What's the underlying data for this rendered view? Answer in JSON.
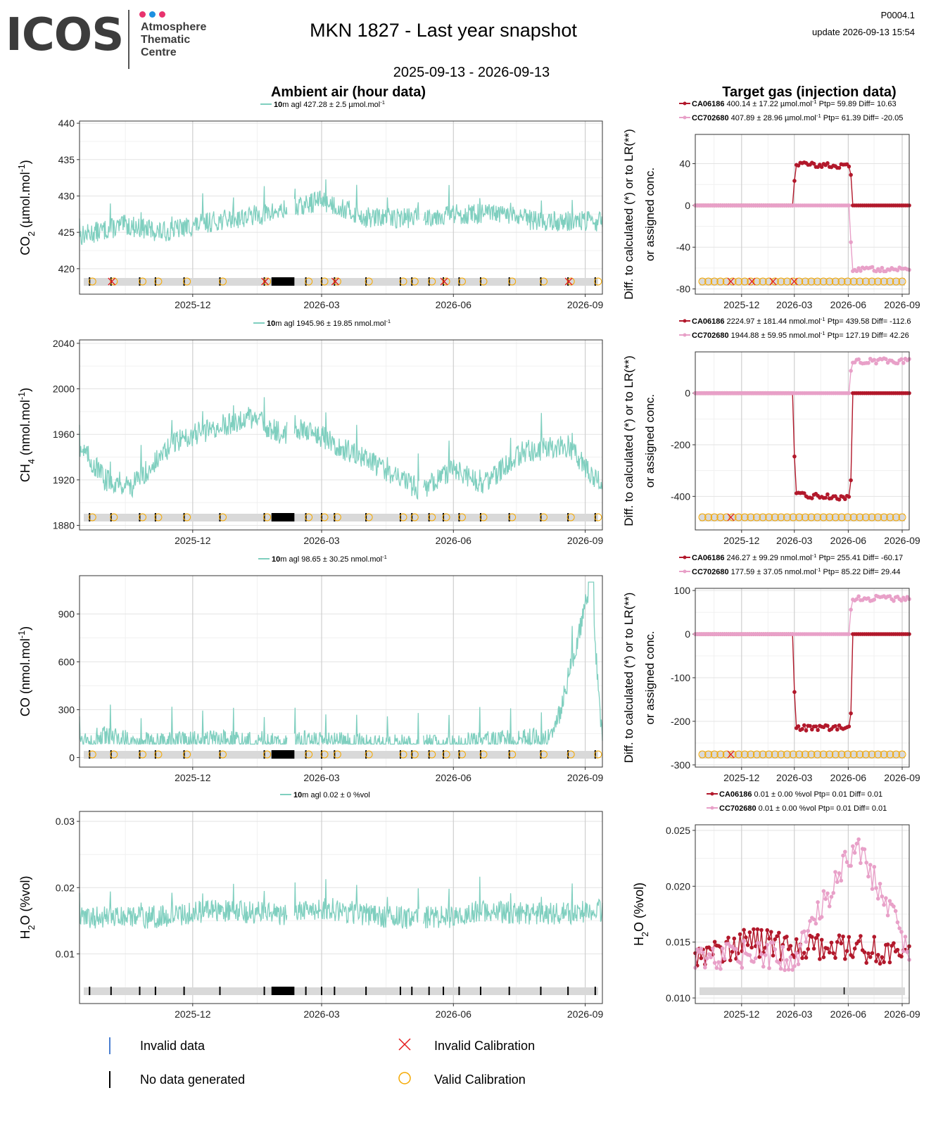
{
  "header": {
    "logo_word": "ICOS",
    "logo_sub": [
      "Atmosphere",
      "Thematic",
      "Centre"
    ],
    "title": "MKN 1827 - Last year snapshot",
    "page_id": "P0004.1",
    "update": "update  2026-09-13 15:54",
    "date_range": "2025-09-13 - 2026-09-13",
    "ambient_title": "Ambient air (hour data)",
    "target_title": "Target gas (injection data)"
  },
  "colors": {
    "ambient": "#7fcfbf",
    "ca06186": "#b2182b",
    "cc702680": "#e8a0c8",
    "invalid_data": "#4a7fd0",
    "no_data": "#000000",
    "invalid_cal": "#e41a1c",
    "valid_cal": "#f5a800",
    "flagband": "#d9d9d9"
  },
  "legend": {
    "invalid_data": "Invalid data",
    "no_data": "No data generated",
    "invalid_cal": "Invalid Calibration",
    "valid_cal": "Valid Calibration"
  },
  "chart_data": [
    {
      "id": "co2-ambient",
      "type": "line",
      "title": "Ambient air (hour data)",
      "ylabel": "CO2 (µmol.mol-1)",
      "ylabel_main": "CO",
      "ylabel_sub": "2",
      "ylabel_unit": " (µmol.mol",
      "ylabel_sup": "-1",
      "ylabel_end": ")",
      "legend": "427.28 ± 2.5 µmol.mol",
      "legend_bold": "10",
      "legend_mid": "m agl",
      "legend_sup": "-1",
      "xlabels": [
        "2025-12",
        "2026-03",
        "2026-06",
        "2026-09"
      ],
      "yticks": [
        420,
        425,
        430,
        435,
        440
      ],
      "ylim": [
        416.5,
        440.3
      ],
      "series": [
        {
          "x": [
            "2025-09-13",
            "2025-10-15",
            "2025-11-10",
            "2025-12-15",
            "2026-01-20",
            "2026-02-15",
            "2026-02-28",
            "2026-04-01",
            "2026-05-01",
            "2026-06-01",
            "2026-07-01",
            "2026-08-01",
            "2026-09-13"
          ],
          "values": [
            424.5,
            426,
            425,
            426.5,
            427.5,
            428.5,
            429.5,
            427,
            427,
            427.5,
            427.5,
            426.5,
            426.5
          ]
        }
      ]
    },
    {
      "id": "co2-target",
      "type": "line",
      "title": "Target gas (injection data)",
      "ylabel": "Diff. to calculated (*) or to LR(**) or assigned conc.",
      "legend_items": [
        {
          "name": "CA06186",
          "stats": "400.14 ± 17.22 µmol.mol",
          "sup": "-1",
          "tail": " Ptp= 59.89 Diff= 10.63"
        },
        {
          "name": "CC702680",
          "stats": "407.89 ± 28.96 µmol.mol",
          "sup": "-1",
          "tail": " Ptp= 61.39 Diff= -20.05"
        }
      ],
      "xlabels": [
        "2025-12",
        "2026-03",
        "2026-06",
        "2026-09"
      ],
      "yticks": [
        -80,
        -40,
        0,
        40
      ],
      "ylim": [
        -85,
        68
      ],
      "series": [
        {
          "name": "CA06186",
          "x": [
            "2025-09-13",
            "2026-02-28",
            "2026-03-02",
            "2026-06-05",
            "2026-06-08",
            "2026-09-13"
          ],
          "values": [
            0,
            0,
            40,
            37,
            0,
            0
          ]
        },
        {
          "name": "CC702680",
          "x": [
            "2025-09-13",
            "2026-06-03",
            "2026-06-07",
            "2026-09-13"
          ],
          "values": [
            0,
            0,
            -61,
            -61
          ]
        }
      ]
    },
    {
      "id": "ch4-ambient",
      "type": "line",
      "ylabel": "CH4 (nmol.mol-1)",
      "ylabel_main": "CH",
      "ylabel_sub": "4",
      "ylabel_unit": " (nmol.mol",
      "ylabel_sup": "-1",
      "ylabel_end": ")",
      "legend": "1945.96 ± 19.85 nmol.mol",
      "legend_bold": "10",
      "legend_mid": "m agl",
      "legend_sup": "-1",
      "xlabels": [
        "2025-12",
        "2026-03",
        "2026-06",
        "2026-09"
      ],
      "yticks": [
        1880,
        1920,
        1960,
        2000,
        2040
      ],
      "ylim": [
        1876,
        2043
      ],
      "series": [
        {
          "x": [
            "2025-09-13",
            "2025-10-01",
            "2025-10-20",
            "2025-11-20",
            "2025-12-15",
            "2026-01-10",
            "2026-02-01",
            "2026-02-20",
            "2026-03-20",
            "2026-04-20",
            "2026-05-10",
            "2026-06-01",
            "2026-06-20",
            "2026-07-20",
            "2026-08-20",
            "2026-09-13"
          ],
          "values": [
            1950,
            1920,
            1915,
            1955,
            1965,
            1975,
            1960,
            1965,
            1945,
            1925,
            1910,
            1930,
            1915,
            1945,
            1950,
            1915
          ]
        }
      ]
    },
    {
      "id": "ch4-target",
      "type": "line",
      "ylabel": "Diff. to calculated (*) or to LR(**) or assigned conc.",
      "legend_items": [
        {
          "name": "CA06186",
          "stats": "2224.97 ± 181.44 nmol.mol",
          "sup": "-1",
          "tail": " Ptp= 439.58 Diff= -112.6"
        },
        {
          "name": "CC702680",
          "stats": "1944.88 ± 59.95 nmol.mol",
          "sup": "-1",
          "tail": " Ptp= 127.19 Diff= 42.26"
        }
      ],
      "xlabels": [
        "2025-12",
        "2026-03",
        "2026-06",
        "2026-09"
      ],
      "yticks": [
        -400,
        -200,
        0
      ],
      "ylim": [
        -530,
        160
      ],
      "series": [
        {
          "name": "CA06186",
          "x": [
            "2025-09-13",
            "2026-02-28",
            "2026-03-02",
            "2026-06-05",
            "2026-06-08",
            "2026-09-13"
          ],
          "values": [
            0,
            0,
            -395,
            -405,
            0,
            0
          ]
        },
        {
          "name": "CC702680",
          "x": [
            "2025-09-13",
            "2026-06-03",
            "2026-06-07",
            "2026-09-13"
          ],
          "values": [
            0,
            0,
            125,
            125
          ]
        }
      ]
    },
    {
      "id": "co-ambient",
      "type": "line",
      "ylabel": "CO (nmol.mol-1)",
      "ylabel_main": "CO",
      "ylabel_sub": "",
      "ylabel_unit": " (nmol.mol",
      "ylabel_sup": "-1",
      "ylabel_end": ")",
      "legend": "98.65 ± 30.25 nmol.mol",
      "legend_bold": "10",
      "legend_mid": "m agl",
      "legend_sup": "-1",
      "xlabels": [
        "2025-12",
        "2026-03",
        "2026-06",
        "2026-09"
      ],
      "yticks": [
        0,
        300,
        600,
        900
      ],
      "ylim": [
        -60,
        1140
      ],
      "series": [
        {
          "x": [
            "2025-09-13",
            "2025-10-01",
            "2025-11-01",
            "2025-12-15",
            "2026-02-01",
            "2026-02-28",
            "2026-04-01",
            "2026-05-01",
            "2026-06-01",
            "2026-07-01",
            "2026-08-10",
            "2026-09-05",
            "2026-09-13"
          ],
          "values": [
            115,
            120,
            95,
            100,
            95,
            100,
            80,
            75,
            80,
            95,
            120,
            1100,
            85
          ]
        }
      ]
    },
    {
      "id": "co-target",
      "type": "line",
      "ylabel": "Diff. to calculated (*) or to LR(**) or assigned conc.",
      "legend_items": [
        {
          "name": "CA06186",
          "stats": "246.27 ± 99.29 nmol.mol",
          "sup": "-1",
          "tail": " Ptp= 255.41 Diff= -60.17"
        },
        {
          "name": "CC702680",
          "stats": "177.59 ± 37.05 nmol.mol",
          "sup": "-1",
          "tail": " Ptp= 85.22 Diff= 29.44"
        }
      ],
      "xlabels": [
        "2025-12",
        "2026-03",
        "2026-06",
        "2026-09"
      ],
      "yticks": [
        -300,
        -200,
        -100,
        0,
        100
      ],
      "ylim": [
        -305,
        105
      ],
      "series": [
        {
          "name": "CA06186",
          "x": [
            "2025-09-13",
            "2026-02-28",
            "2026-03-02",
            "2026-06-05",
            "2026-06-08",
            "2026-09-13"
          ],
          "values": [
            0,
            0,
            -215,
            -215,
            0,
            0
          ]
        },
        {
          "name": "CC702680",
          "x": [
            "2025-09-13",
            "2026-06-03",
            "2026-06-07",
            "2026-09-13"
          ],
          "values": [
            0,
            0,
            82,
            82
          ]
        }
      ]
    },
    {
      "id": "h2o-ambient",
      "type": "line",
      "ylabel": "H2O (%vol)",
      "ylabel_main": "H",
      "ylabel_sub": "2",
      "ylabel_unit": "O (%vol",
      "ylabel_sup": "",
      "ylabel_end": ")",
      "legend": "0.02 ± 0 %vol",
      "legend_bold": "10",
      "legend_mid": "m agl",
      "legend_sup": "",
      "xlabels": [
        "2025-12",
        "2026-03",
        "2026-06",
        "2026-09"
      ],
      "yticks": [
        0.01,
        0.02,
        0.03
      ],
      "ylim": [
        0.0025,
        0.0315
      ],
      "series": [
        {
          "x": [
            "2025-09-13",
            "2025-11-01",
            "2025-12-15",
            "2026-02-01",
            "2026-03-01",
            "2026-04-15",
            "2026-06-01",
            "2026-06-20",
            "2026-08-01",
            "2026-09-13"
          ],
          "values": [
            0.0155,
            0.0155,
            0.0165,
            0.016,
            0.017,
            0.0155,
            0.0155,
            0.0165,
            0.016,
            0.0165
          ]
        }
      ]
    },
    {
      "id": "h2o-target",
      "type": "line",
      "ylabel": "H2O (%vol)",
      "legend_items": [
        {
          "name": "CA06186",
          "stats": "0.01 ± 0.00 %vol",
          "sup": "",
          "tail": " Ptp= 0.01 Diff= 0.01"
        },
        {
          "name": "CC702680",
          "stats": "0.01 ± 0.00 %vol",
          "sup": "",
          "tail": " Ptp= 0.01 Diff= 0.01"
        }
      ],
      "xlabels": [
        "2025-12",
        "2026-03",
        "2026-06",
        "2026-09"
      ],
      "yticks": [
        0.01,
        0.015,
        0.02,
        0.025
      ],
      "ytick_labels": [
        "0.010",
        "0.015",
        "0.020",
        "0.025"
      ],
      "ylim": [
        0.0095,
        0.0255
      ],
      "series": [
        {
          "name": "CA06186",
          "x": [
            "2025-09-13",
            "2025-12-20",
            "2026-03-01",
            "2026-06-10",
            "2026-09-13"
          ],
          "values": [
            0.014,
            0.015,
            0.0145,
            0.0145,
            0.014
          ]
        },
        {
          "name": "CC702680",
          "x": [
            "2025-09-13",
            "2025-12-20",
            "2026-03-01",
            "2026-06-15",
            "2026-09-13"
          ],
          "values": [
            0.0135,
            0.014,
            0.0135,
            0.024,
            0.014
          ]
        }
      ]
    }
  ]
}
